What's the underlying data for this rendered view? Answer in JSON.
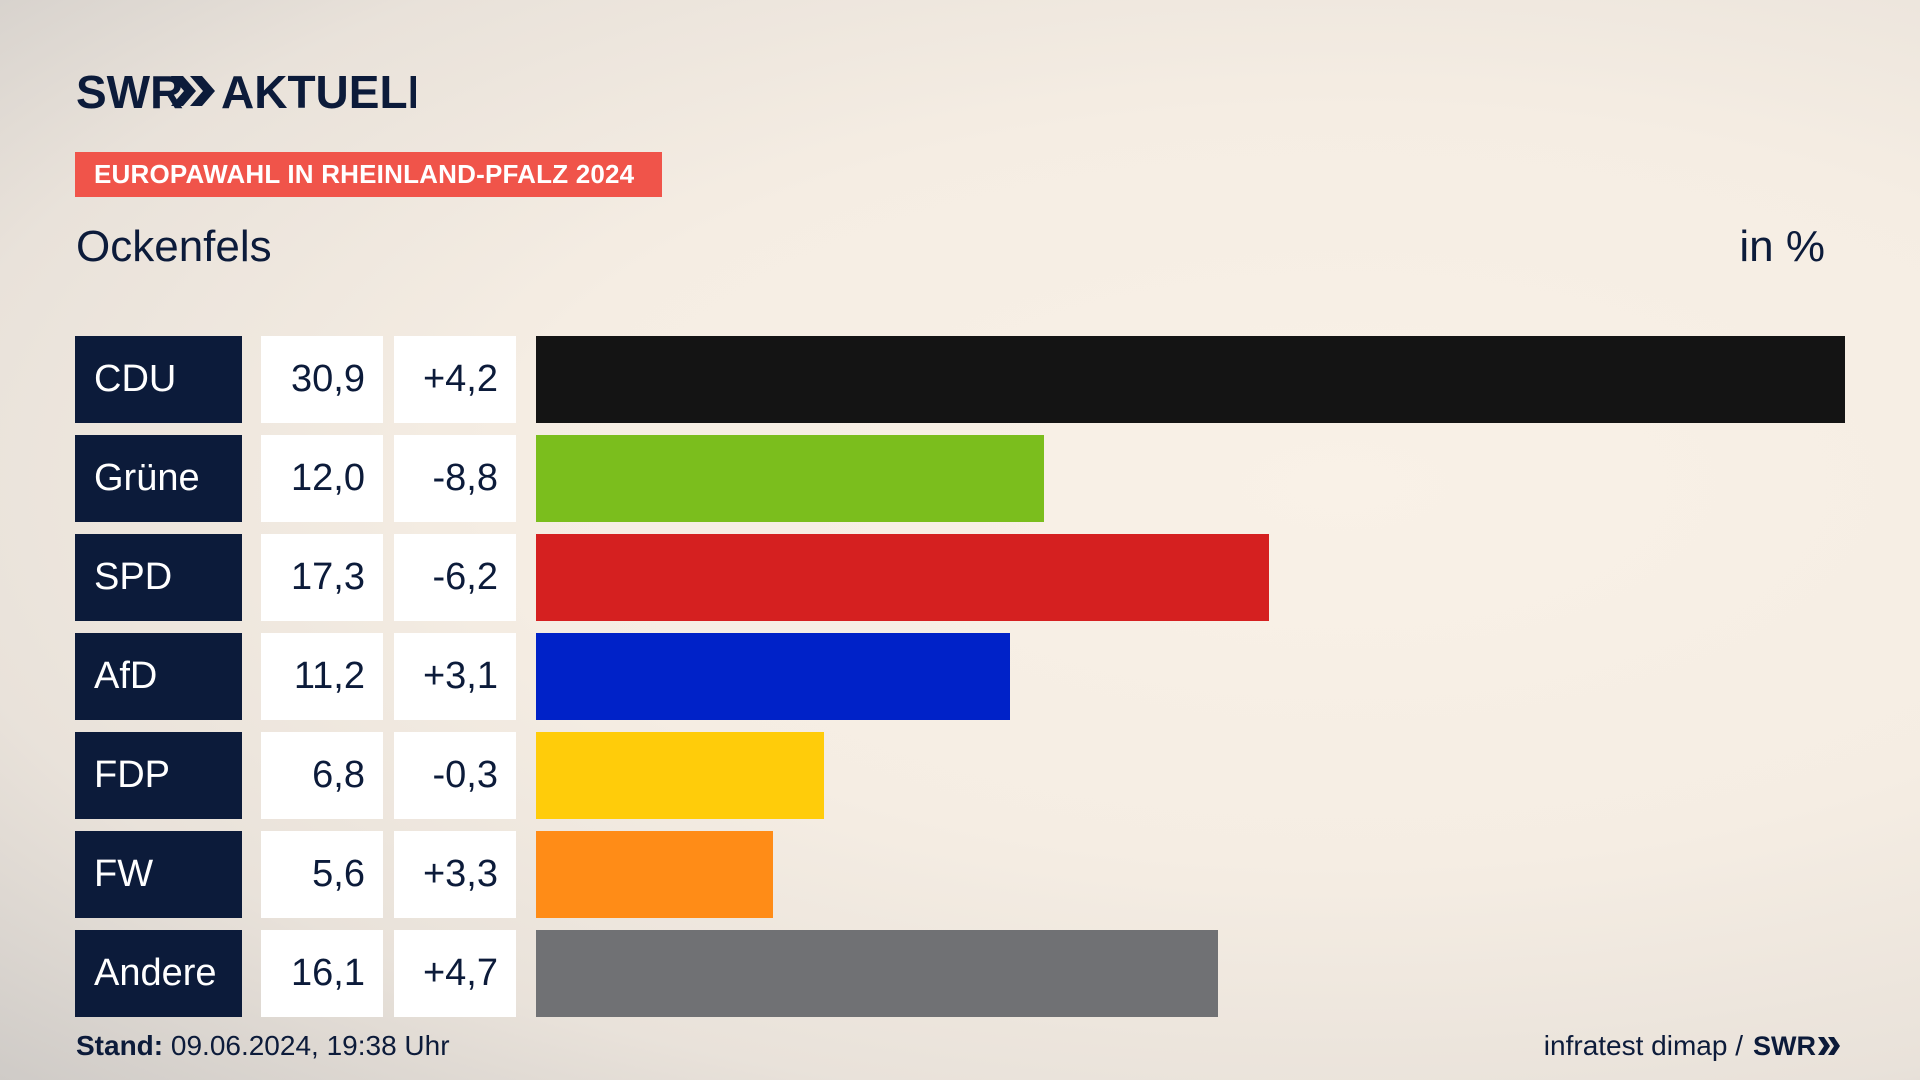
{
  "header": {
    "brand_text": "SWR AKTUELL",
    "tag_label": "EUROPAWAHL IN RHEINLAND-PFALZ 2024",
    "location": "Ockenfels",
    "unit": "in %"
  },
  "chart_data": {
    "type": "bar",
    "title": "EUROPAWAHL IN RHEINLAND-PFALZ 2024",
    "subtitle": "Ockenfels",
    "ylabel": "in %",
    "categories": [
      "CDU",
      "Grüne",
      "SPD",
      "AfD",
      "FDP",
      "FW",
      "Andere"
    ],
    "values": [
      30.9,
      12.0,
      17.3,
      11.2,
      6.8,
      5.6,
      16.1
    ],
    "value_labels": [
      "30,9",
      "12,0",
      "17,3",
      "11,2",
      "6,8",
      "5,6",
      "16,1"
    ],
    "change_labels": [
      "+4,2",
      "-8,8",
      "-6,2",
      "+3,1",
      "-0,3",
      "+3,3",
      "+4,7"
    ],
    "colors": [
      "#141414",
      "#7bbe1d",
      "#d52020",
      "#0022c8",
      "#ffcc0a",
      "#ff8c17",
      "#707174"
    ],
    "xlim": [
      0,
      30.9
    ]
  },
  "footer": {
    "stand_label": "Stand:",
    "stand_value": " 09.06.2024, 19:38 Uhr",
    "source": "infratest dimap /",
    "source_brand": "SWR"
  }
}
